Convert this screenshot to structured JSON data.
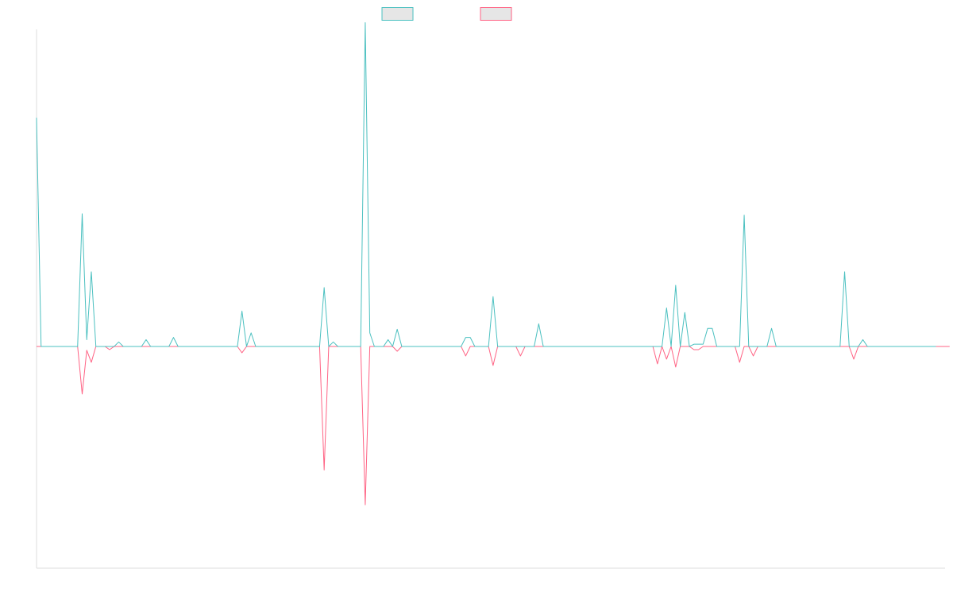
{
  "chart_data": {
    "type": "line",
    "title": "",
    "xlabel": "",
    "ylabel": "",
    "grid": false,
    "legend_position": "top-center",
    "x_count": 200,
    "ylim": [
      -70,
      70
    ],
    "series": [
      {
        "legend_label": "",
        "color": "#4bc0c0",
        "fill": "#e6e6e6",
        "values": [
          50.5,
          0,
          0,
          0,
          0,
          0,
          0,
          0,
          0,
          0,
          29.3,
          1.5,
          16.5,
          0,
          0,
          0,
          0,
          0,
          1,
          0,
          0,
          0,
          0,
          0,
          1.5,
          0,
          0,
          0,
          0,
          0,
          2,
          0,
          0,
          0,
          0,
          0,
          0,
          0,
          0,
          0,
          0,
          0,
          0,
          0,
          0,
          7.8,
          0,
          3,
          0,
          0,
          0,
          0,
          0,
          0,
          0,
          0,
          0,
          0,
          0,
          0,
          0,
          0,
          0,
          13,
          0,
          1,
          0,
          0,
          0,
          0,
          0,
          0,
          71.5,
          3,
          0,
          0,
          0,
          1.5,
          0,
          3.8,
          0,
          0,
          0,
          0,
          0,
          0,
          0,
          0,
          0,
          0,
          0,
          0,
          0,
          0,
          2,
          2,
          0,
          0,
          0,
          0,
          11,
          0,
          0,
          0,
          0,
          0,
          0,
          0,
          0,
          0,
          5,
          0,
          0,
          0,
          0,
          0,
          0,
          0,
          0,
          0,
          0,
          0,
          0,
          0,
          0,
          0,
          0,
          0,
          0,
          0,
          0,
          0,
          0,
          0,
          0,
          0,
          0,
          0,
          8.5,
          0,
          13.5,
          0,
          7.5,
          0,
          0.5,
          0.5,
          0.5,
          4,
          4,
          0,
          0,
          0,
          0,
          0,
          0,
          29,
          0,
          0,
          0,
          0,
          0,
          4,
          0,
          0,
          0,
          0,
          0,
          0,
          0,
          0,
          0,
          0,
          0,
          0,
          0,
          0,
          0,
          16.5,
          0,
          0,
          0,
          1.5,
          0,
          0,
          0,
          0,
          0,
          0,
          0,
          0,
          0,
          0,
          0,
          0,
          0,
          0,
          0,
          0
        ]
      },
      {
        "legend_label": "",
        "color": "#ff6384",
        "fill": "#e6e6e6",
        "values": [
          0,
          0,
          0,
          0,
          0,
          0,
          0,
          0,
          0,
          0,
          -15,
          -1.2,
          -5,
          0,
          0,
          0,
          -1,
          0,
          0,
          0,
          0,
          0,
          0,
          0,
          0,
          0,
          0,
          0,
          0,
          0,
          0,
          0,
          0,
          0,
          0,
          0,
          0,
          0,
          0,
          0,
          0,
          0,
          0,
          0,
          0,
          -2,
          0,
          0,
          0,
          0,
          0,
          0,
          0,
          0,
          0,
          0,
          0,
          0,
          0,
          0,
          0,
          0,
          0,
          -39,
          0,
          0,
          0,
          0,
          0,
          0,
          0,
          0,
          -50,
          0,
          0,
          0,
          0,
          0,
          0,
          -1.5,
          0,
          0,
          0,
          0,
          0,
          0,
          0,
          0,
          0,
          0,
          0,
          0,
          0,
          0,
          -3,
          0,
          0,
          0,
          0,
          0,
          -6,
          0,
          0,
          0,
          0,
          0,
          -3,
          0,
          0,
          0,
          0,
          0,
          0,
          0,
          0,
          0,
          0,
          0,
          0,
          0,
          0,
          0,
          0,
          0,
          0,
          0,
          0,
          0,
          0,
          0,
          0,
          0,
          0,
          0,
          0,
          0,
          -5.5,
          0,
          -4,
          0,
          -6.5,
          0,
          0,
          0,
          -1,
          -1,
          0,
          0,
          0,
          0,
          0,
          0,
          0,
          0,
          -5,
          0,
          0,
          -3,
          0,
          0,
          0,
          0,
          0,
          0,
          0,
          0,
          0,
          0,
          0,
          0,
          0,
          0,
          0,
          0,
          0,
          0,
          0,
          0,
          0,
          -4,
          0,
          0,
          0,
          0,
          0,
          0,
          0,
          0,
          0,
          0,
          0,
          0,
          0,
          0,
          0,
          0,
          0,
          0,
          0,
          0,
          0
        ]
      }
    ]
  }
}
